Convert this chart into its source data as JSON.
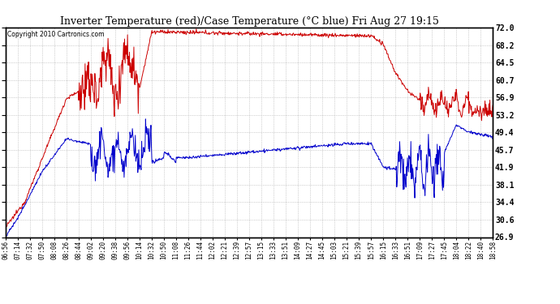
{
  "title": "Inverter Temperature (red)/Case Temperature (°C blue) Fri Aug 27 19:15",
  "copyright": "Copyright 2010 Cartronics.com",
  "ylabel_right_ticks": [
    26.9,
    30.6,
    34.4,
    38.1,
    41.9,
    45.7,
    49.4,
    53.2,
    56.9,
    60.7,
    64.5,
    68.2,
    72.0
  ],
  "ymin": 26.9,
  "ymax": 72.0,
  "background_color": "#ffffff",
  "grid_color": "#aaaaaa",
  "red_color": "#cc0000",
  "blue_color": "#0000cc",
  "x_labels": [
    "06:56",
    "07:14",
    "07:32",
    "07:50",
    "08:08",
    "08:26",
    "08:44",
    "09:02",
    "09:20",
    "09:38",
    "09:56",
    "10:14",
    "10:32",
    "10:50",
    "11:08",
    "11:26",
    "11:44",
    "12:02",
    "12:21",
    "12:39",
    "12:57",
    "13:15",
    "13:33",
    "13:51",
    "14:09",
    "14:27",
    "14:45",
    "15:03",
    "15:21",
    "15:39",
    "15:57",
    "16:15",
    "16:33",
    "16:51",
    "17:09",
    "17:27",
    "17:45",
    "18:04",
    "18:22",
    "18:40",
    "18:58"
  ],
  "figsize": [
    6.9,
    3.75
  ],
  "dpi": 100
}
